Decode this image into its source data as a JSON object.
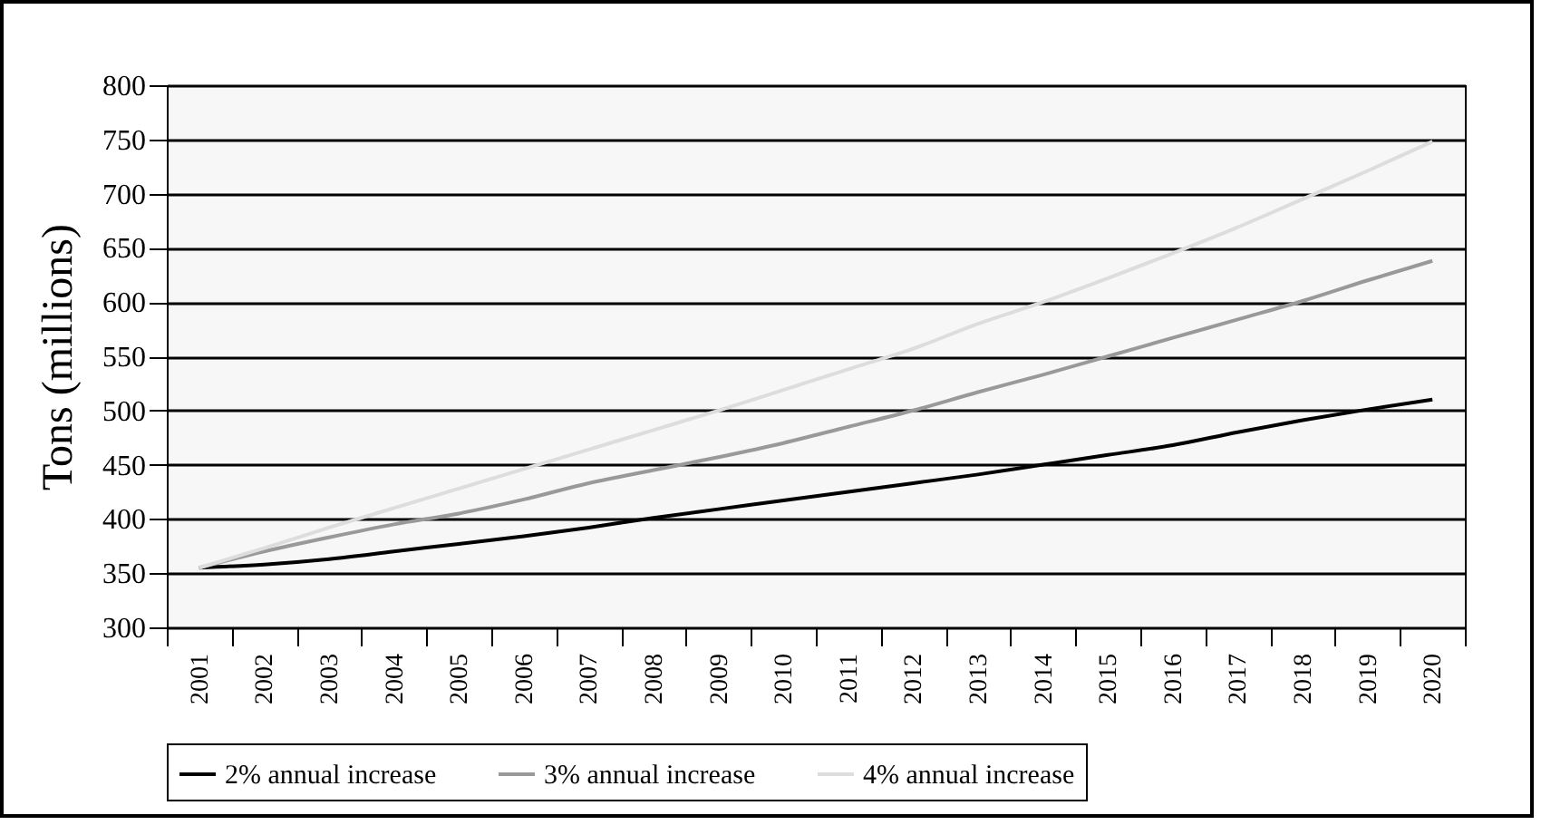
{
  "chart_data": {
    "type": "line",
    "ylabel": "Tons (millions)",
    "categories": [
      "2001",
      "2002",
      "2003",
      "2004",
      "2005",
      "2006",
      "2007",
      "2008",
      "2009",
      "2010",
      "2011",
      "2012",
      "2013",
      "2014",
      "2015",
      "2016",
      "2017",
      "2018",
      "2019",
      "2020"
    ],
    "series": [
      {
        "name": "2% annual increase",
        "color": "#000000",
        "values": [
          355,
          358,
          363,
          370,
          377,
          384,
          392,
          401,
          409,
          417,
          425,
          433,
          441,
          450,
          459,
          468,
          480,
          491,
          501,
          510
        ]
      },
      {
        "name": "3% annual increase",
        "color": "#999999",
        "values": [
          355,
          370,
          383,
          395,
          405,
          418,
          433,
          445,
          457,
          470,
          485,
          500,
          517,
          533,
          550,
          567,
          584,
          601,
          620,
          638
        ]
      },
      {
        "name": "4% annual increase",
        "color": "#dddddd",
        "values": [
          355,
          373,
          392,
          410,
          428,
          446,
          464,
          482,
          500,
          519,
          538,
          557,
          580,
          600,
          622,
          645,
          669,
          695,
          721,
          748
        ]
      }
    ],
    "ylim": [
      300,
      800
    ],
    "yticks": [
      300,
      350,
      400,
      450,
      500,
      550,
      600,
      650,
      700,
      750,
      800
    ],
    "grid": "y",
    "legend": "bottom"
  }
}
